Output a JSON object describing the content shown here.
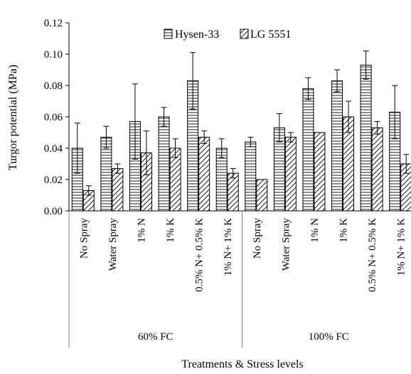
{
  "chart_data": {
    "type": "bar",
    "title": "",
    "xlabel": "Treatments & Stress levels",
    "ylabel": "Turgor potential (MPa)",
    "ylim": [
      0,
      0.12
    ],
    "yticks": [
      "0.00",
      "0.02",
      "0.04",
      "0.06",
      "0.08",
      "0.10",
      "0.12"
    ],
    "grid": false,
    "legend_position": "top",
    "groups": [
      {
        "label": "60% FC",
        "categories": [
          "No Spray",
          "Water Spray",
          "1% N",
          "1% K",
          "0.5% N+ 0.5% K",
          "1% N+ 1% K"
        ]
      },
      {
        "label": "100% FC",
        "categories": [
          "No Spray",
          "Water Spray",
          "1% N",
          "1% K",
          "0.5% N+ 0.5% K",
          "1% N+ 1% K"
        ]
      }
    ],
    "series": [
      {
        "name": "Hysen-33",
        "pattern": "horizontal-lines",
        "values": [
          0.04,
          0.047,
          0.057,
          0.06,
          0.083,
          0.04,
          0.044,
          0.053,
          0.078,
          0.083,
          0.093,
          0.063
        ],
        "errors": [
          0.016,
          0.007,
          0.024,
          0.006,
          0.018,
          0.006,
          0.003,
          0.009,
          0.007,
          0.007,
          0.009,
          0.017
        ]
      },
      {
        "name": "LG 5551",
        "pattern": "diagonal-lines",
        "values": [
          0.013,
          0.027,
          0.037,
          0.04,
          0.047,
          0.024,
          0.02,
          0.047,
          0.05,
          0.06,
          0.053,
          0.03
        ],
        "errors": [
          0.003,
          0.003,
          0.014,
          0.006,
          0.004,
          0.003,
          0.0,
          0.003,
          0.0,
          0.01,
          0.004,
          0.006
        ]
      }
    ]
  }
}
